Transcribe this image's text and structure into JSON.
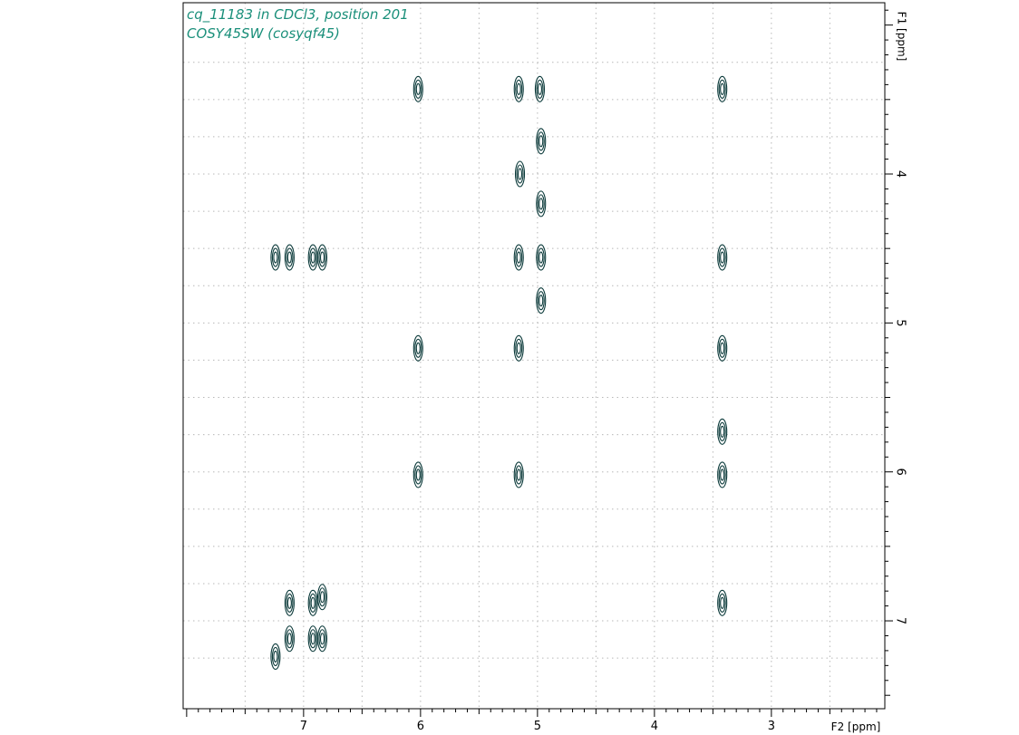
{
  "chart_data": {
    "type": "contour",
    "title_lines": [
      "cq_11183 in CDCl3, position 201",
      "COSY45SW (cosyqf45)"
    ],
    "x_axis": {
      "label": "F2 [ppm]",
      "range": [
        8.03,
        2.03
      ],
      "reversed": true,
      "ticks": [
        7,
        6,
        5,
        4,
        3
      ],
      "tick_labels": [
        "7",
        "6",
        "5",
        "4",
        "3"
      ],
      "grid_at": [
        7.5,
        7,
        6.5,
        6,
        5.5,
        5,
        4.5,
        4,
        3.5,
        3,
        2.5
      ]
    },
    "y_axis": {
      "label": "F1 [ppm]",
      "range": [
        2.85,
        7.59
      ],
      "reversed": true,
      "position": "right",
      "ticks": [
        4,
        5,
        6,
        7
      ],
      "tick_labels": [
        "4",
        "5",
        "6",
        "7"
      ],
      "grid_at": [
        3.25,
        3.5,
        3.75,
        4,
        4.25,
        4.5,
        4.75,
        5,
        5.25,
        5.5,
        5.75,
        6,
        6.25,
        6.5,
        6.75,
        7,
        7.25
      ]
    },
    "grid": "dotted",
    "contour_color": "#0b3a3a",
    "peaks": [
      {
        "f2": 6.02,
        "f1": 3.43
      },
      {
        "f2": 5.16,
        "f1": 3.43
      },
      {
        "f2": 4.98,
        "f1": 3.43
      },
      {
        "f2": 3.42,
        "f1": 3.43
      },
      {
        "f2": 4.97,
        "f1": 3.78
      },
      {
        "f2": 5.15,
        "f1": 4.0
      },
      {
        "f2": 4.97,
        "f1": 4.2
      },
      {
        "f2": 7.24,
        "f1": 4.56
      },
      {
        "f2": 7.12,
        "f1": 4.56
      },
      {
        "f2": 6.92,
        "f1": 4.56
      },
      {
        "f2": 6.84,
        "f1": 4.56
      },
      {
        "f2": 5.16,
        "f1": 4.56
      },
      {
        "f2": 4.97,
        "f1": 4.56
      },
      {
        "f2": 3.42,
        "f1": 4.56
      },
      {
        "f2": 4.97,
        "f1": 4.85
      },
      {
        "f2": 6.02,
        "f1": 5.17
      },
      {
        "f2": 5.16,
        "f1": 5.17
      },
      {
        "f2": 3.42,
        "f1": 5.17
      },
      {
        "f2": 3.42,
        "f1": 5.73
      },
      {
        "f2": 6.02,
        "f1": 6.02
      },
      {
        "f2": 5.16,
        "f1": 6.02
      },
      {
        "f2": 3.42,
        "f1": 6.02
      },
      {
        "f2": 7.12,
        "f1": 6.88
      },
      {
        "f2": 6.92,
        "f1": 6.88
      },
      {
        "f2": 6.84,
        "f1": 6.84
      },
      {
        "f2": 3.42,
        "f1": 6.88
      },
      {
        "f2": 7.24,
        "f1": 7.24
      },
      {
        "f2": 7.12,
        "f1": 7.12
      },
      {
        "f2": 6.92,
        "f1": 7.12
      },
      {
        "f2": 6.84,
        "f1": 7.12
      }
    ]
  }
}
